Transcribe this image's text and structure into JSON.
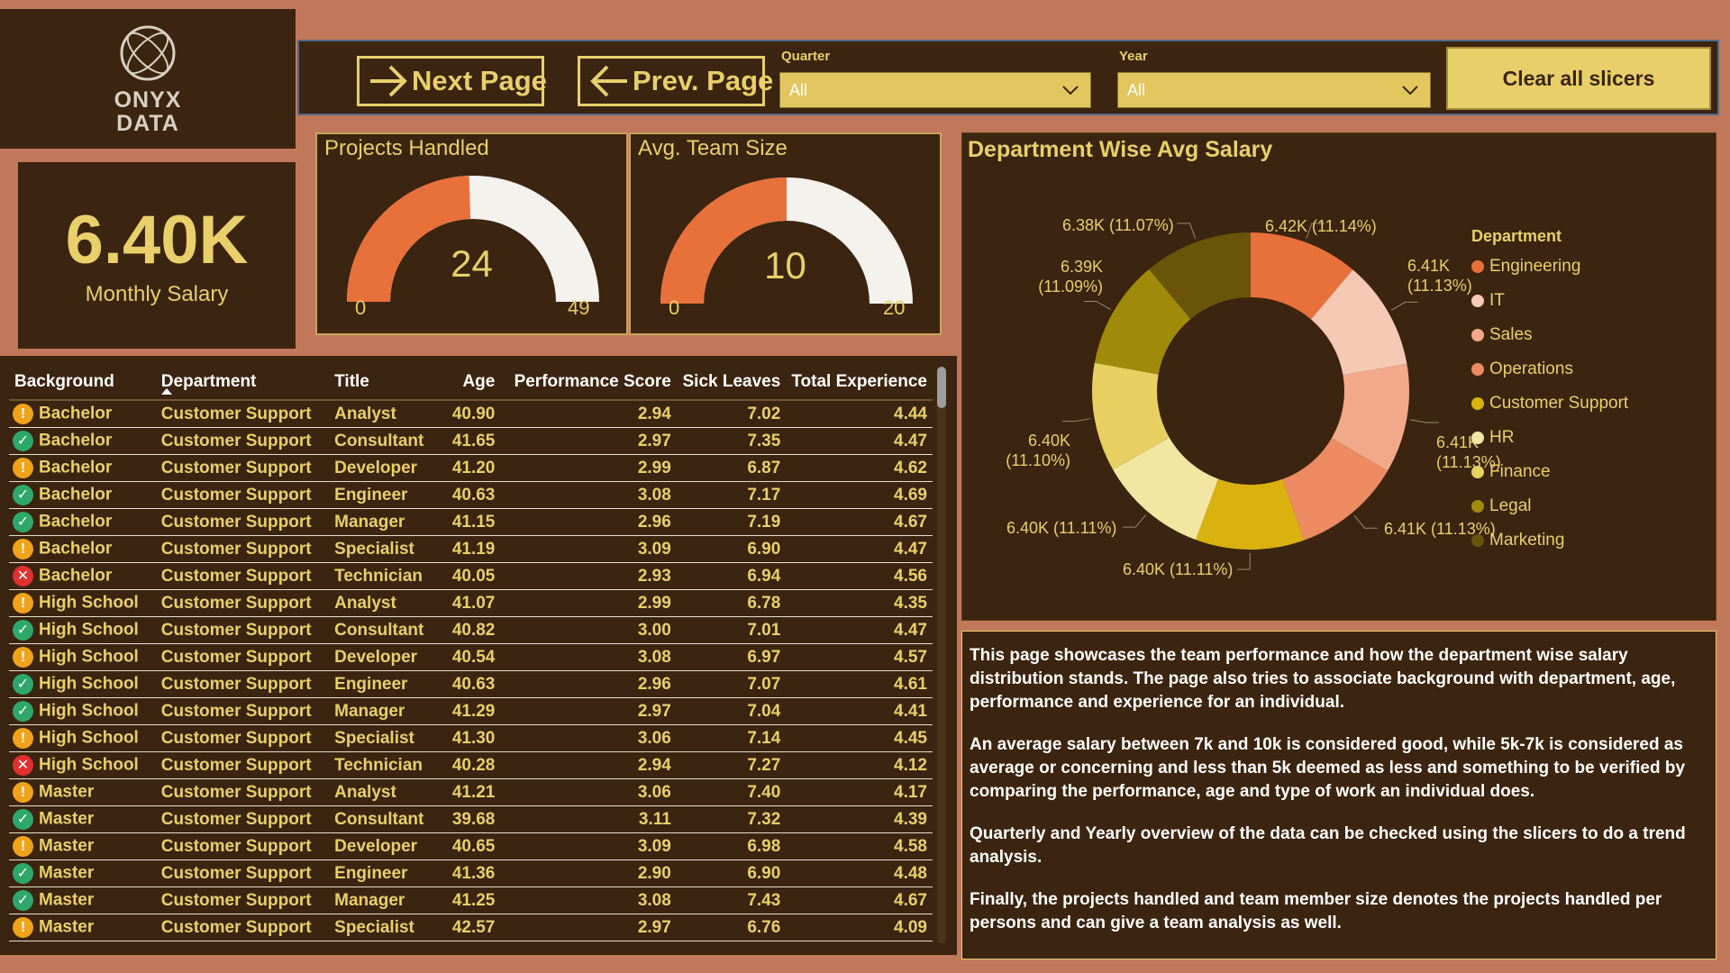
{
  "logo": {
    "line1": "ONYX",
    "line2": "DATA"
  },
  "toolbar": {
    "next_label": "Next Page",
    "prev_label": "Prev. Page",
    "clear_label": "Clear all slicers"
  },
  "slicers": {
    "quarter": {
      "label": "Quarter",
      "value": "All"
    },
    "year": {
      "label": "Year",
      "value": "All"
    }
  },
  "kpi": {
    "value": "6.40K",
    "label": "Monthly Salary"
  },
  "gauges": {
    "projects": {
      "title": "Projects Handled",
      "value": 24,
      "min": 0,
      "max": 49,
      "fill_fraction": 0.49
    },
    "team": {
      "title": "Avg. Team Size",
      "value": 10,
      "min": 0,
      "max": 20,
      "fill_fraction": 0.5
    }
  },
  "table": {
    "headers": [
      "Background",
      "Department",
      "Title",
      "Age",
      "Performance Score",
      "Sick Leaves",
      "Total Experience"
    ],
    "rows": [
      {
        "status": "warn",
        "background": "Bachelor",
        "department": "Customer Support",
        "title": "Analyst",
        "age": "40.90",
        "perf": "2.94",
        "sick": "7.02",
        "exp": "4.44"
      },
      {
        "status": "ok",
        "background": "Bachelor",
        "department": "Customer Support",
        "title": "Consultant",
        "age": "41.65",
        "perf": "2.97",
        "sick": "7.35",
        "exp": "4.47"
      },
      {
        "status": "warn",
        "background": "Bachelor",
        "department": "Customer Support",
        "title": "Developer",
        "age": "41.20",
        "perf": "2.99",
        "sick": "6.87",
        "exp": "4.62"
      },
      {
        "status": "ok",
        "background": "Bachelor",
        "department": "Customer Support",
        "title": "Engineer",
        "age": "40.63",
        "perf": "3.08",
        "sick": "7.17",
        "exp": "4.69"
      },
      {
        "status": "ok",
        "background": "Bachelor",
        "department": "Customer Support",
        "title": "Manager",
        "age": "41.15",
        "perf": "2.96",
        "sick": "7.19",
        "exp": "4.67"
      },
      {
        "status": "warn",
        "background": "Bachelor",
        "department": "Customer Support",
        "title": "Specialist",
        "age": "41.19",
        "perf": "3.09",
        "sick": "6.90",
        "exp": "4.47"
      },
      {
        "status": "bad",
        "background": "Bachelor",
        "department": "Customer Support",
        "title": "Technician",
        "age": "40.05",
        "perf": "2.93",
        "sick": "6.94",
        "exp": "4.56"
      },
      {
        "status": "warn",
        "background": "High School",
        "department": "Customer Support",
        "title": "Analyst",
        "age": "41.07",
        "perf": "2.99",
        "sick": "6.78",
        "exp": "4.35"
      },
      {
        "status": "ok",
        "background": "High School",
        "department": "Customer Support",
        "title": "Consultant",
        "age": "40.82",
        "perf": "3.00",
        "sick": "7.01",
        "exp": "4.47"
      },
      {
        "status": "warn",
        "background": "High School",
        "department": "Customer Support",
        "title": "Developer",
        "age": "40.54",
        "perf": "3.08",
        "sick": "6.97",
        "exp": "4.57"
      },
      {
        "status": "ok",
        "background": "High School",
        "department": "Customer Support",
        "title": "Engineer",
        "age": "40.63",
        "perf": "2.96",
        "sick": "7.07",
        "exp": "4.61"
      },
      {
        "status": "ok",
        "background": "High School",
        "department": "Customer Support",
        "title": "Manager",
        "age": "41.29",
        "perf": "2.97",
        "sick": "7.04",
        "exp": "4.41"
      },
      {
        "status": "warn",
        "background": "High School",
        "department": "Customer Support",
        "title": "Specialist",
        "age": "41.30",
        "perf": "3.06",
        "sick": "7.14",
        "exp": "4.45"
      },
      {
        "status": "bad",
        "background": "High School",
        "department": "Customer Support",
        "title": "Technician",
        "age": "40.28",
        "perf": "2.94",
        "sick": "7.27",
        "exp": "4.12"
      },
      {
        "status": "warn",
        "background": "Master",
        "department": "Customer Support",
        "title": "Analyst",
        "age": "41.21",
        "perf": "3.06",
        "sick": "7.40",
        "exp": "4.17"
      },
      {
        "status": "ok",
        "background": "Master",
        "department": "Customer Support",
        "title": "Consultant",
        "age": "39.68",
        "perf": "3.11",
        "sick": "7.32",
        "exp": "4.39"
      },
      {
        "status": "warn",
        "background": "Master",
        "department": "Customer Support",
        "title": "Developer",
        "age": "40.65",
        "perf": "3.09",
        "sick": "6.98",
        "exp": "4.58"
      },
      {
        "status": "ok",
        "background": "Master",
        "department": "Customer Support",
        "title": "Engineer",
        "age": "41.36",
        "perf": "2.90",
        "sick": "6.90",
        "exp": "4.48"
      },
      {
        "status": "ok",
        "background": "Master",
        "department": "Customer Support",
        "title": "Manager",
        "age": "41.25",
        "perf": "3.08",
        "sick": "7.43",
        "exp": "4.67"
      },
      {
        "status": "warn",
        "background": "Master",
        "department": "Customer Support",
        "title": "Specialist",
        "age": "42.57",
        "perf": "2.97",
        "sick": "6.76",
        "exp": "4.09"
      }
    ]
  },
  "chart_data": {
    "type": "pie",
    "title": "Department Wise Avg Salary",
    "legend_title": "Department",
    "legend_position": "right",
    "categories": [
      "Engineering",
      "IT",
      "Sales",
      "Operations",
      "Customer Support",
      "HR",
      "Finance",
      "Legal",
      "Marketing"
    ],
    "values": [
      6420,
      6410,
      6410,
      6410,
      6400,
      6400,
      6400,
      6390,
      6380
    ],
    "labels": [
      "6.42K (11.14%)",
      "6.41K (11.13%)",
      "6.41K (11.13%)",
      "6.41K (11.13%)",
      "6.40K (11.11%)",
      "6.40K (11.11%)",
      "6.40K (11.10%)",
      "6.39K (11.09%)",
      "6.38K (11.07%)"
    ],
    "colors": [
      "#e8703a",
      "#f5c9b4",
      "#f2a98a",
      "#ec8a62",
      "#d9b210",
      "#f3e6a3",
      "#e8cf62",
      "#a08a0a",
      "#6a540a"
    ]
  },
  "description": [
    "This page showcases the team performance and how the department wise salary distribution stands. The page also tries to associate background with department, age, performance and experience for an individual.",
    "An average salary between 7k and 10k is considered good, while 5k-7k is considered as average or concerning and less than 5k deemed as less and something to be verified by comparing the performance, age and type of work an individual does.",
    "Quarterly and Yearly overview of the data can be checked using the slicers to do a trend analysis.",
    "Finally, the projects handled and team member size denotes the projects handled per persons and can give a team analysis as well."
  ],
  "colors": {
    "panel": "#3b2410",
    "background": "#c1785a",
    "accent": "#e9cf6a",
    "gauge_fill": "#e8703a",
    "gauge_track": "#f5f2ee"
  }
}
